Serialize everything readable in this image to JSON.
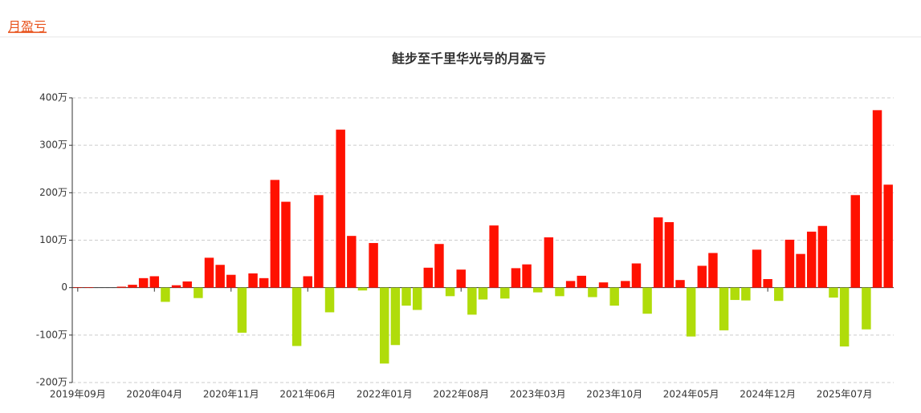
{
  "header": {
    "title": "月盈亏"
  },
  "chart_data": {
    "type": "bar",
    "title": "鲑步至千里华光号的月盈亏",
    "categories": [
      "2019年09月",
      null,
      null,
      null,
      null,
      null,
      null,
      "2020年04月",
      null,
      null,
      null,
      null,
      null,
      null,
      "2020年11月",
      null,
      null,
      null,
      null,
      null,
      null,
      "2021年06月",
      null,
      null,
      null,
      null,
      null,
      null,
      "2022年01月",
      null,
      null,
      null,
      null,
      null,
      null,
      "2022年08月",
      null,
      null,
      null,
      null,
      null,
      null,
      "2023年03月",
      null,
      null,
      null,
      null,
      null,
      null,
      "2023年10月",
      null,
      null,
      null,
      null,
      null,
      null,
      "2024年05月",
      null,
      null,
      null,
      null,
      null,
      null,
      "2024年12月",
      null,
      null,
      null,
      null,
      null,
      null,
      "2025年07月",
      null,
      null,
      null,
      null
    ],
    "values": [
      1,
      1,
      0,
      0,
      2,
      6,
      20,
      24,
      -30,
      5,
      13,
      -22,
      63,
      48,
      27,
      -95,
      30,
      20,
      227,
      181,
      -123,
      24,
      195,
      -52,
      333,
      109,
      -6,
      94,
      -160,
      -121,
      -38,
      -47,
      42,
      92,
      -18,
      38,
      -57,
      -25,
      131,
      -23,
      41,
      49,
      -10,
      106,
      -18,
      14,
      25,
      -20,
      11,
      -38,
      14,
      51,
      -55,
      148,
      138,
      16,
      -103,
      46,
      73,
      -90,
      -26,
      -27,
      80,
      18,
      -28,
      101,
      71,
      118,
      130,
      -21,
      -124,
      195,
      -88,
      374,
      217
    ],
    "positive_color": "#ff1100",
    "negative_color": "#b0dc0a",
    "ylim": [
      -200,
      400
    ],
    "yticks": [
      {
        "value": -200,
        "label": "-200万"
      },
      {
        "value": -100,
        "label": "-100万"
      },
      0,
      {
        "value": 100,
        "label": "100万"
      },
      {
        "value": 200,
        "label": "200万"
      },
      {
        "value": 300,
        "label": "300万"
      },
      {
        "value": 400,
        "label": "400万"
      }
    ],
    "grid": true
  }
}
